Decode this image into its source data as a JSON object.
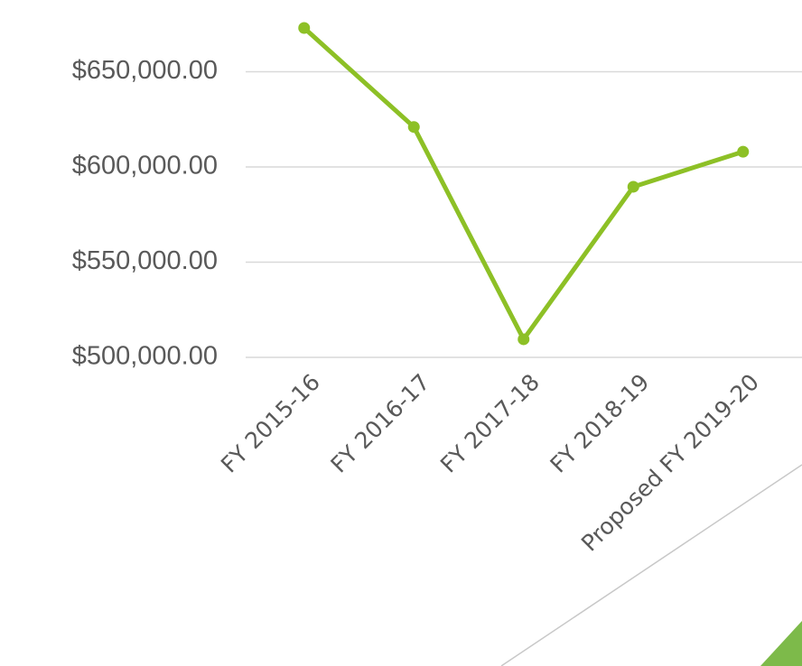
{
  "chart_data": {
    "type": "line",
    "categories": [
      "FY 2015-16",
      "FY 2016-17",
      "FY 2017-18",
      "FY 2018-19",
      "Proposed FY 2019-20"
    ],
    "series": [
      {
        "color": "#8dc026",
        "values": [
          673000,
          621000,
          509500,
          589600,
          608000
        ]
      }
    ],
    "ylim": [
      500000,
      687500
    ],
    "yticks": [
      {
        "value": 500000,
        "label": "$500,000.00"
      },
      {
        "value": 550000,
        "label": "$550,000.00"
      },
      {
        "value": 600000,
        "label": "$600,000.00"
      },
      {
        "value": 650000,
        "label": "$650,000.00"
      }
    ],
    "grid": true
  }
}
